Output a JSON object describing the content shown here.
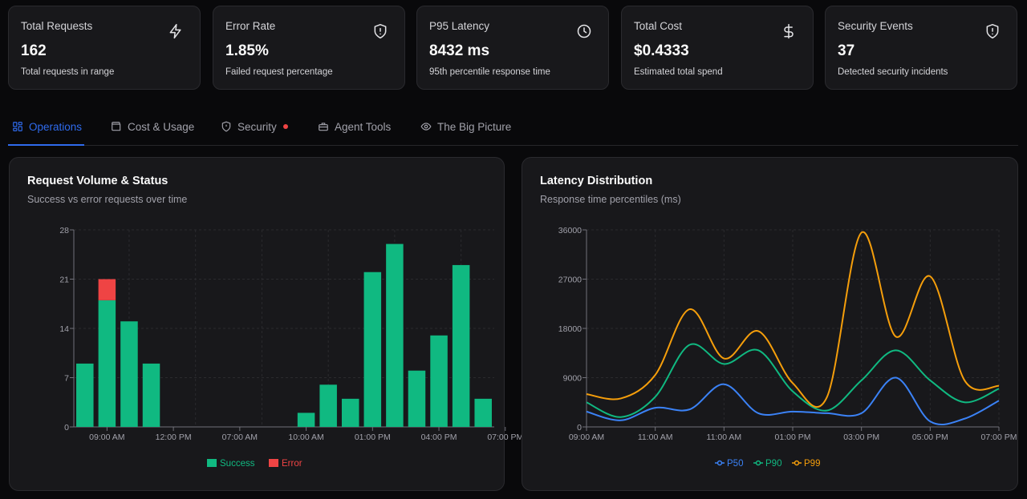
{
  "kpis": [
    {
      "title": "Total Requests",
      "value": "162",
      "subtitle": "Total requests in range",
      "icon": "lightning-icon"
    },
    {
      "title": "Error Rate",
      "value": "1.85%",
      "subtitle": "Failed request percentage",
      "icon": "shield-alert-icon"
    },
    {
      "title": "P95 Latency",
      "value": "8432 ms",
      "subtitle": "95th percentile response time",
      "icon": "clock-icon"
    },
    {
      "title": "Total Cost",
      "value": "$0.4333",
      "subtitle": "Estimated total spend",
      "icon": "dollar-icon"
    },
    {
      "title": "Security Events",
      "value": "37",
      "subtitle": "Detected security incidents",
      "icon": "shield-alert-icon"
    }
  ],
  "tabs": [
    {
      "label": "Operations",
      "icon": "grid-icon",
      "active": true
    },
    {
      "label": "Cost & Usage",
      "icon": "wallet-icon",
      "active": false
    },
    {
      "label": "Security",
      "icon": "shield-icon",
      "active": false,
      "has_alert": true
    },
    {
      "label": "Agent Tools",
      "icon": "toolbox-icon",
      "active": false
    },
    {
      "label": "The Big Picture",
      "icon": "eye-icon",
      "active": false
    }
  ],
  "request_panel": {
    "title": "Request Volume & Status",
    "subtitle": "Success vs error requests over time"
  },
  "latency_panel": {
    "title": "Latency Distribution",
    "subtitle": "Response time percentiles (ms)"
  },
  "colors": {
    "success": "#10b981",
    "error": "#ef4444",
    "p50": "#3b82f6",
    "p90": "#10b981",
    "p99": "#f59e0b",
    "accent": "#2f6bed"
  },
  "chart_data": [
    {
      "type": "bar",
      "stacked": true,
      "x_tick_labels": [
        "09:00 AM",
        "12:00 PM",
        "07:00 AM",
        "10:00 AM",
        "01:00 PM",
        "04:00 PM",
        "07:00 PM"
      ],
      "y_ticks": [
        0,
        7,
        14,
        21,
        28
      ],
      "ylim": [
        0,
        28
      ],
      "series": [
        {
          "name": "Success",
          "values": [
            9,
            18,
            15,
            9,
            0,
            0,
            0,
            0,
            0,
            0,
            2,
            6,
            4,
            22,
            26,
            8,
            13,
            23,
            4
          ]
        },
        {
          "name": "Error",
          "values": [
            0,
            3,
            0,
            0,
            0,
            0,
            0,
            0,
            0,
            0,
            0,
            0,
            0,
            0,
            0,
            0,
            0,
            0,
            0
          ]
        }
      ],
      "legend": "bottom",
      "grid": true
    },
    {
      "type": "line",
      "x_tick_labels": [
        "09:00 AM",
        "11:00 AM",
        "11:00 AM",
        "01:00 PM",
        "03:00 PM",
        "05:00 PM",
        "07:00 PM"
      ],
      "y_ticks": [
        0,
        9000,
        18000,
        27000,
        36000
      ],
      "ylim": [
        0,
        36000
      ],
      "series": [
        {
          "name": "P50",
          "values": [
            2800,
            1200,
            3500,
            3200,
            7800,
            2500,
            2800,
            2500,
            2500,
            9000,
            1000,
            1500,
            4800
          ]
        },
        {
          "name": "P90",
          "values": [
            4500,
            1800,
            5500,
            15000,
            11500,
            14000,
            6500,
            3000,
            8500,
            14000,
            8500,
            4500,
            7000
          ]
        },
        {
          "name": "P99",
          "values": [
            6000,
            5200,
            9500,
            21500,
            12500,
            17500,
            8000,
            5500,
            35500,
            16500,
            27500,
            8500,
            7500
          ]
        }
      ],
      "legend": "bottom",
      "grid": true
    }
  ]
}
